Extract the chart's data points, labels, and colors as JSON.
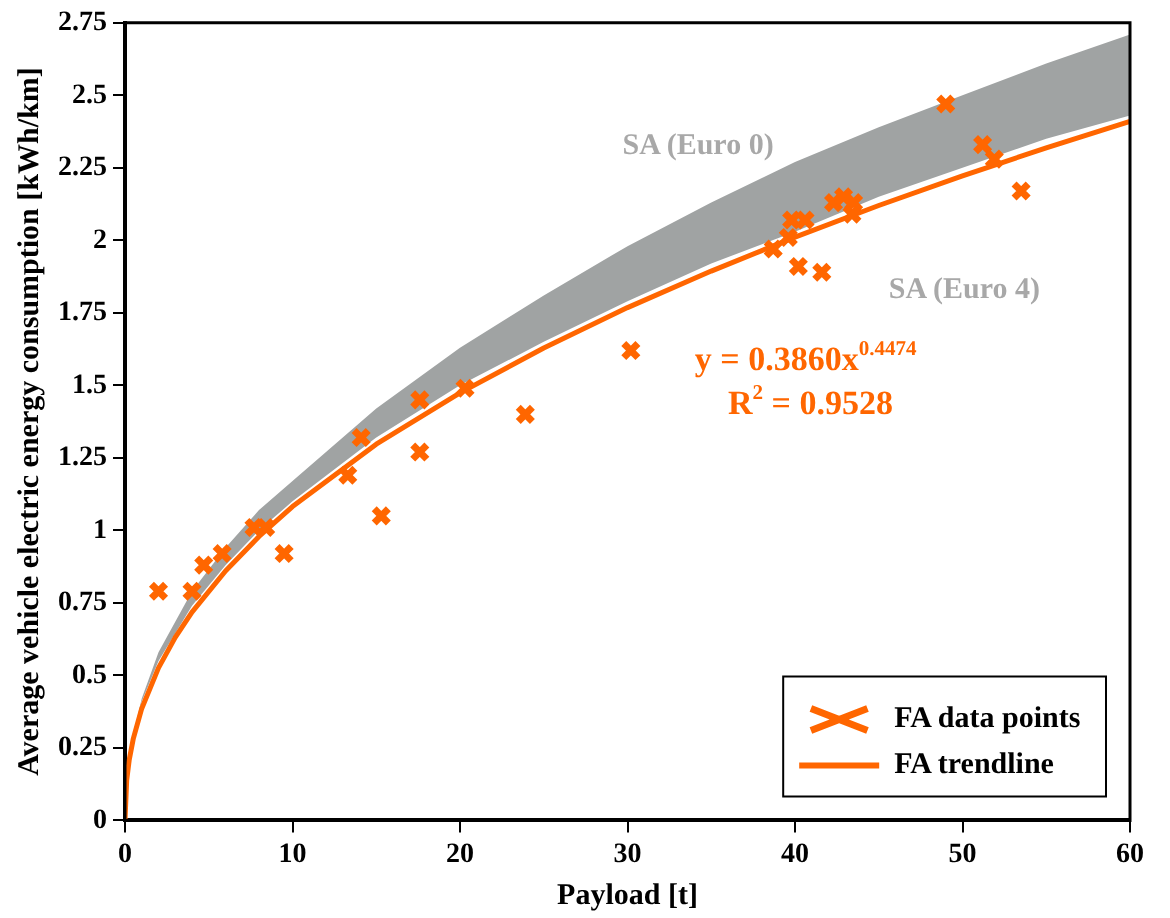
{
  "chart_data": {
    "type": "scatter",
    "xlabel": "Payload [t]",
    "ylabel": "Average vehicle electric energy consumption [kWh/km]",
    "xlim": [
      0,
      60
    ],
    "xticks": [
      0,
      10,
      20,
      30,
      40,
      50,
      60
    ],
    "ylim": [
      0,
      2.75
    ],
    "yticks": [
      0,
      0.25,
      0.5,
      0.75,
      1,
      1.25,
      1.5,
      1.75,
      2,
      2.25,
      2.5,
      2.75
    ],
    "grid": false,
    "legend": "bottom right",
    "annotations": [
      "SA (Euro 0)",
      "SA (Euro 4)",
      "y = 0.3860x$^{0.4474}$",
      "R$^{2}$ = 0.9528"
    ],
    "series": [
      {
        "type": "area",
        "color": "#a0a3a3",
        "x": [
          0.5,
          1,
          2,
          4,
          6,
          8,
          10,
          15,
          20,
          25,
          30,
          35,
          40,
          45,
          50,
          55,
          60
        ],
        "values": [
          null,
          null,
          null,
          null,
          null,
          null,
          null,
          null,
          null,
          null,
          null,
          null,
          null,
          null,
          null,
          null,
          null
        ],
        "upper": [
          0.3,
          0.42,
          0.58,
          0.79,
          0.94,
          1.07,
          1.17,
          1.42,
          1.63,
          1.81,
          1.98,
          2.13,
          2.27,
          2.39,
          2.5,
          2.61,
          2.71
        ],
        "lower": [
          0.3,
          0.41,
          0.55,
          0.74,
          0.88,
          1.0,
          1.1,
          1.32,
          1.5,
          1.65,
          1.79,
          1.92,
          2.03,
          2.15,
          2.25,
          2.35,
          2.43
        ]
      },
      {
        "name": "FA data points",
        "color": "#ff6600",
        "marker": "cross",
        "x": [
          2,
          4,
          4.7,
          5.8,
          7.7,
          8.4,
          9.5,
          13.3,
          14.1,
          15.3,
          17.6,
          17.6,
          20.3,
          23.9,
          30.2,
          38.7,
          39.6,
          39.8,
          40.2,
          40.6,
          41.6,
          42.3,
          42.9,
          43.4,
          43.5,
          49,
          51.2,
          51.9,
          53.5
        ],
        "values": [
          0.79,
          0.79,
          0.88,
          0.92,
          1.01,
          1.01,
          0.92,
          1.19,
          1.32,
          1.05,
          1.45,
          1.27,
          1.49,
          1.4,
          1.62,
          1.97,
          2.01,
          2.07,
          1.91,
          2.07,
          1.89,
          2.13,
          2.15,
          2.09,
          2.13,
          2.47,
          2.33,
          2.28,
          2.17
        ]
      },
      {
        "type": "line",
        "name": "FA trendline",
        "color": "#ff6600",
        "x": [
          0,
          0.1,
          0.25,
          0.5,
          1,
          2,
          3,
          4,
          6,
          8,
          10,
          15,
          20,
          25,
          30,
          35,
          40,
          45,
          50,
          55,
          60
        ],
        "values": [
          0,
          0.138,
          0.208,
          0.283,
          0.386,
          0.526,
          0.631,
          0.718,
          0.86,
          0.979,
          1.082,
          1.297,
          1.474,
          1.629,
          1.768,
          1.894,
          2.011,
          2.12,
          2.222,
          2.319,
          2.41
        ]
      }
    ]
  }
}
